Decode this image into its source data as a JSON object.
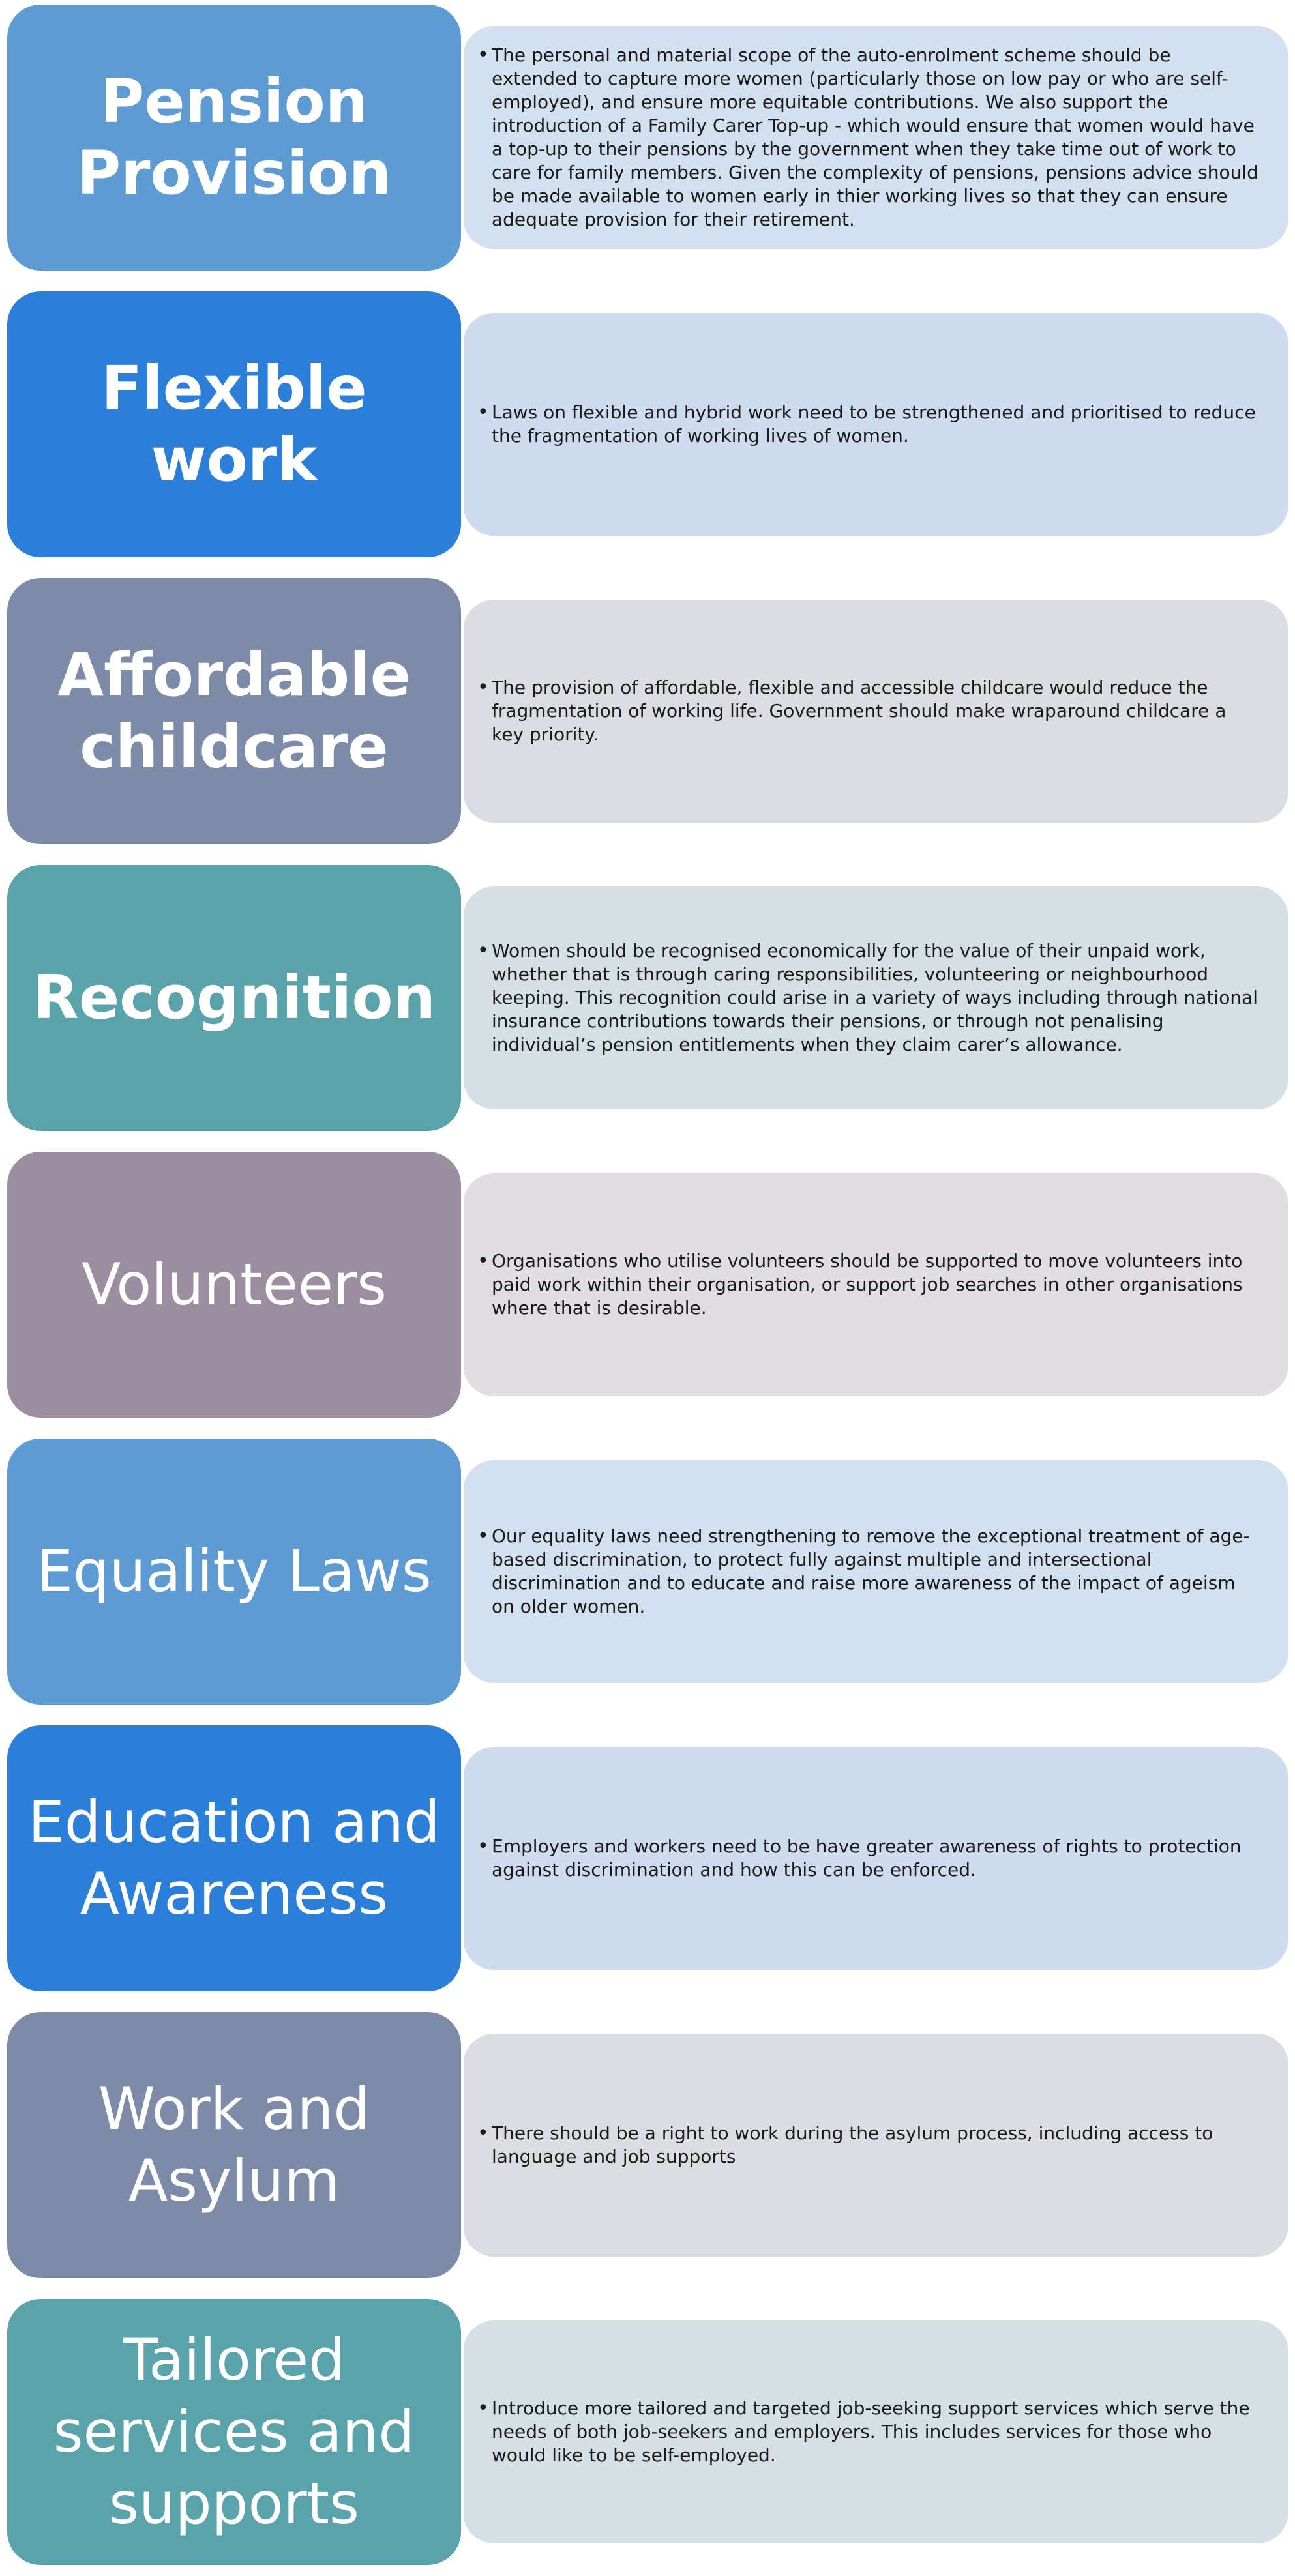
{
  "colors": {
    "pension": "#5f9bd3",
    "flexible": "#2b7fd9",
    "childcare": "#7e8ba8",
    "recognition": "#5aa3ab",
    "volunteers": "#9c8ea0",
    "panel_blue_light": "#d3e0ef",
    "panel_blue": "#cfdcf0",
    "panel_grey": "#dcdde3",
    "panel_teal": "#d5e0e4",
    "panel_mauve": "#e0dee2"
  },
  "items": [
    {
      "title": "Pension Provision",
      "text": "The personal and material scope of the auto-enrolment scheme should be extended to capture more women (particularly those on low pay or who are self-employed), and ensure more equitable contributions. We also support the introduction of a Family Carer Top-up - which would ensure that women would have a top-up to their pensions by the government when they take time out of work to care for family members. Given the complexity of pensions, pensions advice should be made available to women early in thier working lives so that they can ensure adequate provision for their retirement."
    },
    {
      "title": "Flexible work",
      "text": "Laws on flexible and hybrid work need to be strengthened and prioritised to reduce the fragmentation of working lives of women."
    },
    {
      "title": "Affordable childcare",
      "text": " The provision of affordable, flexible and accessible childcare would reduce the fragmentation of working life. Government should make wraparound childcare a key priority."
    },
    {
      "title": "Recognition",
      "text": "Women should be recognised economically for the value of their unpaid work, whether that is through caring responsibilities, volunteering or neighbourhood keeping. This recognition could arise in a variety of ways including through national insurance contributions towards their pensions, or through not penalising individual’s pension entitlements when they claim carer’s allowance."
    },
    {
      "title": "Volunteers",
      "text": "Organisations who utilise volunteers should be supported to move volunteers into paid work within their organisation, or support job searches in other organisations where that is desirable."
    },
    {
      "title": "Equality Laws",
      "text": "Our equality laws need strengthening to remove the exceptional treatment of age-based discrimination, to protect fully against multiple and intersectional discrimination and to educate and raise more awareness of the impact of ageism on older women."
    },
    {
      "title": "Education and Awareness",
      "text": "Employers and workers need to be have greater awareness of rights to protection against discrimination and how this can be enforced."
    },
    {
      "title": "Work and Asylum",
      "text": "There should be a right to work during the asylum process, including access to language and job supports"
    },
    {
      "title": "Tailored services and supports",
      "text": "Introduce more tailored and targeted job-seeking support services which serve the needs of both job-seekers and employers. This includes services for those who would like to be self-employed."
    }
  ]
}
